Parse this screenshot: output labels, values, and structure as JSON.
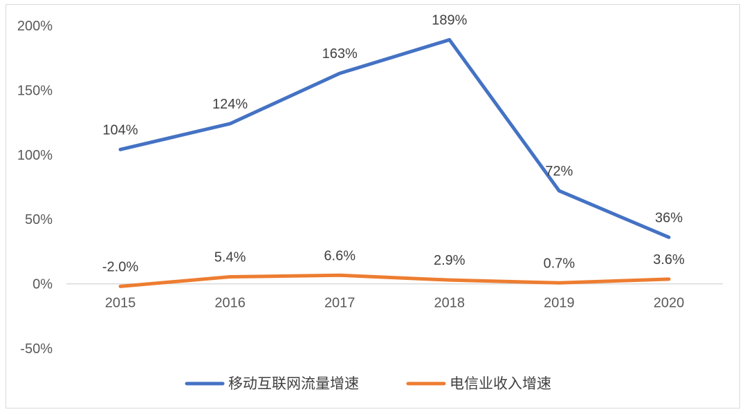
{
  "chart_data": {
    "type": "line",
    "categories": [
      "2015",
      "2016",
      "2017",
      "2018",
      "2019",
      "2020"
    ],
    "ylim": [
      -50,
      200
    ],
    "y_ticks": [
      -50,
      0,
      50,
      100,
      150,
      200
    ],
    "y_tick_labels": [
      "-50%",
      "0%",
      "50%",
      "100%",
      "150%",
      "200%"
    ],
    "grid": false,
    "legend_position": "bottom",
    "series": [
      {
        "name": "移动互联网流量增速",
        "color": "#4472c4",
        "values": [
          104,
          124,
          163,
          189,
          72,
          36
        ],
        "labels": [
          "104%",
          "124%",
          "163%",
          "189%",
          "72%",
          "36%"
        ]
      },
      {
        "name": "电信业收入增速",
        "color": "#ed7d31",
        "values": [
          -2.0,
          5.4,
          6.6,
          2.9,
          0.7,
          3.6
        ],
        "labels": [
          "-2.0%",
          "5.4%",
          "6.6%",
          "2.9%",
          "0.7%",
          "3.6%"
        ]
      }
    ]
  }
}
